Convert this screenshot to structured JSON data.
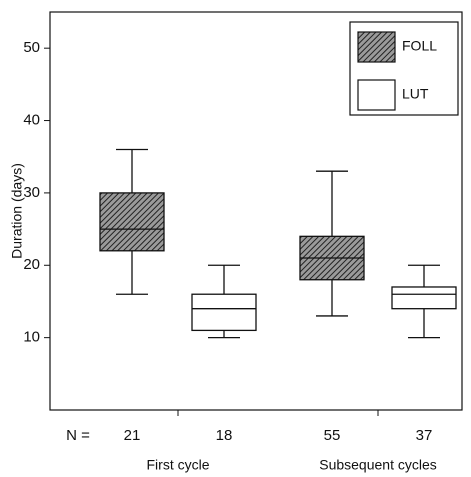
{
  "chart_data": {
    "type": "box",
    "y_label": "Duration (days)",
    "ylim": [
      0,
      55
    ],
    "yticks": [
      10,
      20,
      30,
      40,
      50
    ],
    "groups": [
      "First cycle",
      "Subsequent cycles"
    ],
    "n_label": "N =",
    "legend_position": "upper right",
    "series": [
      {
        "name": "FOLL",
        "color": "#555555",
        "hatched": true,
        "n": [
          21,
          55
        ],
        "values": [
          {
            "min": 16,
            "q1": 22,
            "median": 25,
            "q3": 30,
            "max": 36
          },
          {
            "min": 13,
            "q1": 18,
            "median": 21,
            "q3": 24,
            "max": 33
          }
        ]
      },
      {
        "name": "LUT",
        "color": "#ffffff",
        "hatched": false,
        "n": [
          18,
          37
        ],
        "values": [
          {
            "min": 10,
            "q1": 11,
            "median": 14,
            "q3": 16,
            "max": 20
          },
          {
            "min": 10,
            "q1": 14,
            "median": 16,
            "q3": 17,
            "max": 20
          }
        ]
      }
    ]
  }
}
